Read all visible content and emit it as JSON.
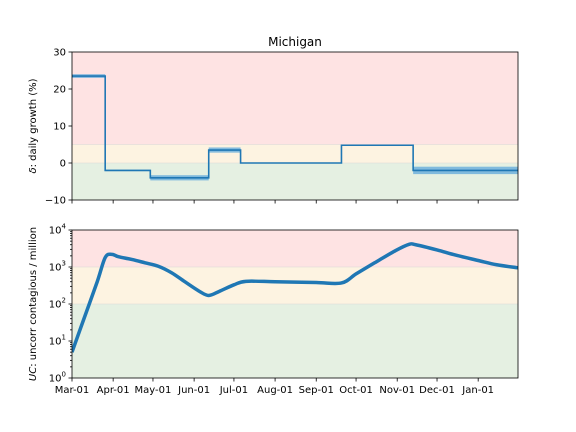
{
  "chart_data": [
    {
      "type": "line",
      "title": "Michigan",
      "ylabel_italic": "δ",
      "ylabel_rest": ": daily growth (%)",
      "ylim": [
        -10,
        30
      ],
      "yticks": [
        -10,
        0,
        10,
        20,
        30
      ],
      "yticklabels": [
        "−10",
        "0",
        "10",
        "20",
        "30"
      ],
      "xlim": [
        "2020-03-01",
        "2021-01-31"
      ],
      "bands": [
        {
          "from": -10,
          "to": 0,
          "color": "#e5f0e2"
        },
        {
          "from": 0,
          "to": 5,
          "color": "#fdf3e1"
        },
        {
          "from": 5,
          "to": 30,
          "color": "#fee3e3"
        }
      ],
      "series": [
        {
          "color": "#1f77b4",
          "uncertainty_color": "#6fb0dc",
          "steps": [
            {
              "start": "2020-03-01",
              "end": "2020-03-26",
              "value": 23.5,
              "low": 23.0,
              "high": 24.0
            },
            {
              "start": "2020-03-26",
              "end": "2020-04-29",
              "value": -2.0,
              "low": -2.2,
              "high": -1.8
            },
            {
              "start": "2020-04-29",
              "end": "2020-06-12",
              "value": -4.0,
              "low": -4.7,
              "high": -3.3
            },
            {
              "start": "2020-06-12",
              "end": "2020-07-06",
              "value": 3.5,
              "low": 2.8,
              "high": 4.2
            },
            {
              "start": "2020-07-06",
              "end": "2020-09-20",
              "value": 0.0,
              "low": -0.1,
              "high": 0.1
            },
            {
              "start": "2020-09-20",
              "end": "2020-11-13",
              "value": 4.8,
              "low": 4.7,
              "high": 4.9
            },
            {
              "start": "2020-11-13",
              "end": "2021-01-31",
              "value": -2.0,
              "low": -3.0,
              "high": -1.0
            }
          ]
        }
      ]
    },
    {
      "type": "line",
      "ylabel_italic": "UC",
      "ylabel_rest": ": uncorr contagious / million",
      "yscale": "log",
      "ylim": [
        1,
        10000
      ],
      "yticks": [
        1,
        10,
        100,
        1000,
        10000
      ],
      "yticklabels": [
        [
          "10",
          "0"
        ],
        [
          "10",
          "1"
        ],
        [
          "10",
          "2"
        ],
        [
          "10",
          "3"
        ],
        [
          "10",
          "4"
        ]
      ],
      "xlim": [
        "2020-03-01",
        "2021-01-31"
      ],
      "xticks": [
        "2020-03-01",
        "2020-04-01",
        "2020-05-01",
        "2020-06-01",
        "2020-07-01",
        "2020-08-01",
        "2020-09-01",
        "2020-10-01",
        "2020-11-01",
        "2020-12-01",
        "2021-01-01"
      ],
      "xticklabels": [
        "Mar-01",
        "Apr-01",
        "May-01",
        "Jun-01",
        "Jul-01",
        "Aug-01",
        "Sep-01",
        "Oct-01",
        "Nov-01",
        "Dec-01",
        "Jan-01"
      ],
      "bands": [
        {
          "from": 1,
          "to": 100,
          "color": "#e5f0e2"
        },
        {
          "from": 100,
          "to": 1000,
          "color": "#fdf3e1"
        },
        {
          "from": 1000,
          "to": 10000,
          "color": "#fee3e3"
        }
      ],
      "series": [
        {
          "color": "#1f77b4",
          "points": [
            [
              "2020-03-01",
              5
            ],
            [
              "2020-03-10",
              40
            ],
            [
              "2020-03-20",
              400
            ],
            [
              "2020-03-26",
              1800
            ],
            [
              "2020-03-31",
              2200
            ],
            [
              "2020-04-05",
              1900
            ],
            [
              "2020-04-15",
              1600
            ],
            [
              "2020-04-25",
              1300
            ],
            [
              "2020-05-05",
              1050
            ],
            [
              "2020-05-15",
              700
            ],
            [
              "2020-05-25",
              400
            ],
            [
              "2020-06-05",
              220
            ],
            [
              "2020-06-12",
              170
            ],
            [
              "2020-06-20",
              220
            ],
            [
              "2020-07-01",
              330
            ],
            [
              "2020-07-10",
              410
            ],
            [
              "2020-08-01",
              400
            ],
            [
              "2020-09-01",
              380
            ],
            [
              "2020-09-20",
              370
            ],
            [
              "2020-10-01",
              650
            ],
            [
              "2020-10-15",
              1300
            ],
            [
              "2020-10-31",
              2800
            ],
            [
              "2020-11-10",
              4100
            ],
            [
              "2020-11-15",
              4000
            ],
            [
              "2020-12-01",
              2900
            ],
            [
              "2020-12-15",
              2100
            ],
            [
              "2021-01-01",
              1500
            ],
            [
              "2021-01-15",
              1150
            ],
            [
              "2021-01-31",
              950
            ]
          ]
        }
      ]
    }
  ]
}
